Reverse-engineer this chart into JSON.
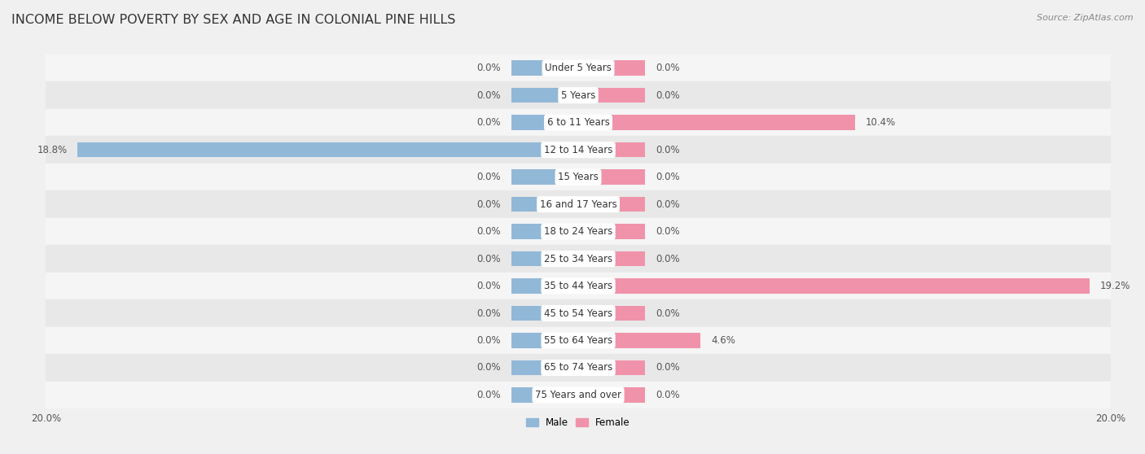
{
  "title": "INCOME BELOW POVERTY BY SEX AND AGE IN COLONIAL PINE HILLS",
  "source": "Source: ZipAtlas.com",
  "categories": [
    "Under 5 Years",
    "5 Years",
    "6 to 11 Years",
    "12 to 14 Years",
    "15 Years",
    "16 and 17 Years",
    "18 to 24 Years",
    "25 to 34 Years",
    "35 to 44 Years",
    "45 to 54 Years",
    "55 to 64 Years",
    "65 to 74 Years",
    "75 Years and over"
  ],
  "male_values": [
    0.0,
    0.0,
    0.0,
    18.8,
    0.0,
    0.0,
    0.0,
    0.0,
    0.0,
    0.0,
    0.0,
    0.0,
    0.0
  ],
  "female_values": [
    0.0,
    0.0,
    10.4,
    0.0,
    0.0,
    0.0,
    0.0,
    0.0,
    19.2,
    0.0,
    4.6,
    0.0,
    0.0
  ],
  "male_color": "#92b8d8",
  "female_color": "#f093aa",
  "male_label": "Male",
  "female_label": "Female",
  "axis_limit": 20.0,
  "min_bar": 2.5,
  "background_color": "#f0f0f0",
  "row_color_odd": "#f5f5f5",
  "row_color_even": "#e8e8e8",
  "title_fontsize": 11.5,
  "source_fontsize": 8,
  "label_fontsize": 8.5,
  "value_fontsize": 8.5
}
